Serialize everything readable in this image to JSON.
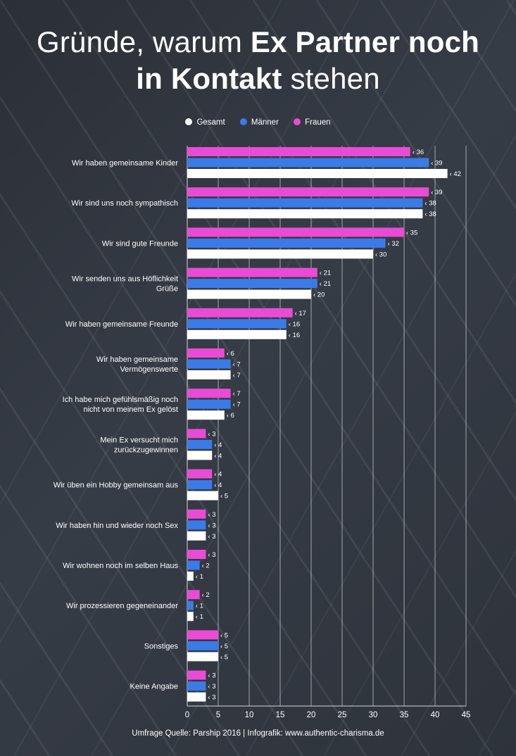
{
  "title": {
    "part1": "Gründe, warum ",
    "bold1": "Ex Partner noch",
    "bold2": "in Kontakt",
    "part2": " stehen"
  },
  "colors": {
    "gesamt": "#ffffff",
    "maenner": "#3b7be8",
    "frauen": "#ea4bd6"
  },
  "source": "Umfrage Quelle: Parship 2016 | Infografik: www.authentic-charisma.de",
  "chart_data": {
    "type": "bar",
    "orientation": "horizontal",
    "categories": [
      "Wir haben gemeinsame Kinder",
      "Wir sind uns noch sympathisch",
      "Wir sind gute Freunde",
      "Wir senden uns aus Höflichkeit Grüße",
      "Wir haben gemeinsame Freunde",
      "Wir haben gemeinsame Vermögenswerte",
      "Ich habe mich gefühlsmäßig noch nicht von meinem Ex gelöst",
      "Mein Ex versucht mich zurückzugewinnen",
      "Wir üben ein Hobby gemeinsam aus",
      "Wir haben hin und wieder noch Sex",
      "Wir wohnen noch im selben Haus",
      "Wir prozessieren gegeneinander",
      "Sonstiges",
      "Keine Angabe"
    ],
    "category_lines": [
      [
        "Wir haben gemeinsame Kinder"
      ],
      [
        "Wir sind uns noch sympathisch"
      ],
      [
        "Wir sind gute Freunde"
      ],
      [
        "Wir senden uns aus Höflichkeit",
        "Grüße"
      ],
      [
        "Wir haben gemeinsame Freunde"
      ],
      [
        "Wir haben gemeinsame",
        "Vermögenswerte"
      ],
      [
        "Ich habe mich gefühlsmäßig noch",
        "nicht von meinem Ex gelöst"
      ],
      [
        "Mein Ex versucht mich",
        "zurückzugewinnen"
      ],
      [
        "Wir üben ein Hobby gemeinsam aus"
      ],
      [
        "Wir haben hin und wieder noch Sex"
      ],
      [
        "Wir wohnen noch im selben Haus"
      ],
      [
        "Wir prozessieren gegeneinander"
      ],
      [
        "Sonstiges"
      ],
      [
        "Keine Angabe"
      ]
    ],
    "series": [
      {
        "name": "Frauen",
        "color": "#ea4bd6",
        "values": [
          36,
          39,
          35,
          21,
          17,
          6,
          7,
          3,
          4,
          3,
          3,
          2,
          5,
          3
        ]
      },
      {
        "name": "Männer",
        "color": "#3b7be8",
        "values": [
          39,
          38,
          32,
          21,
          16,
          7,
          7,
          4,
          4,
          3,
          2,
          1,
          5,
          3
        ]
      },
      {
        "name": "Gesamt",
        "color": "#ffffff",
        "values": [
          42,
          38,
          30,
          20,
          16,
          7,
          6,
          4,
          5,
          3,
          1,
          1,
          5,
          3
        ]
      }
    ],
    "legend_order": [
      "Gesamt",
      "Männer",
      "Frauen"
    ],
    "legend_position": "top-center",
    "xlim": [
      0,
      45
    ],
    "xticks": [
      0,
      5,
      10,
      15,
      20,
      25,
      30,
      35,
      40,
      45
    ],
    "grid": true,
    "value_label_prefix": "‹"
  }
}
